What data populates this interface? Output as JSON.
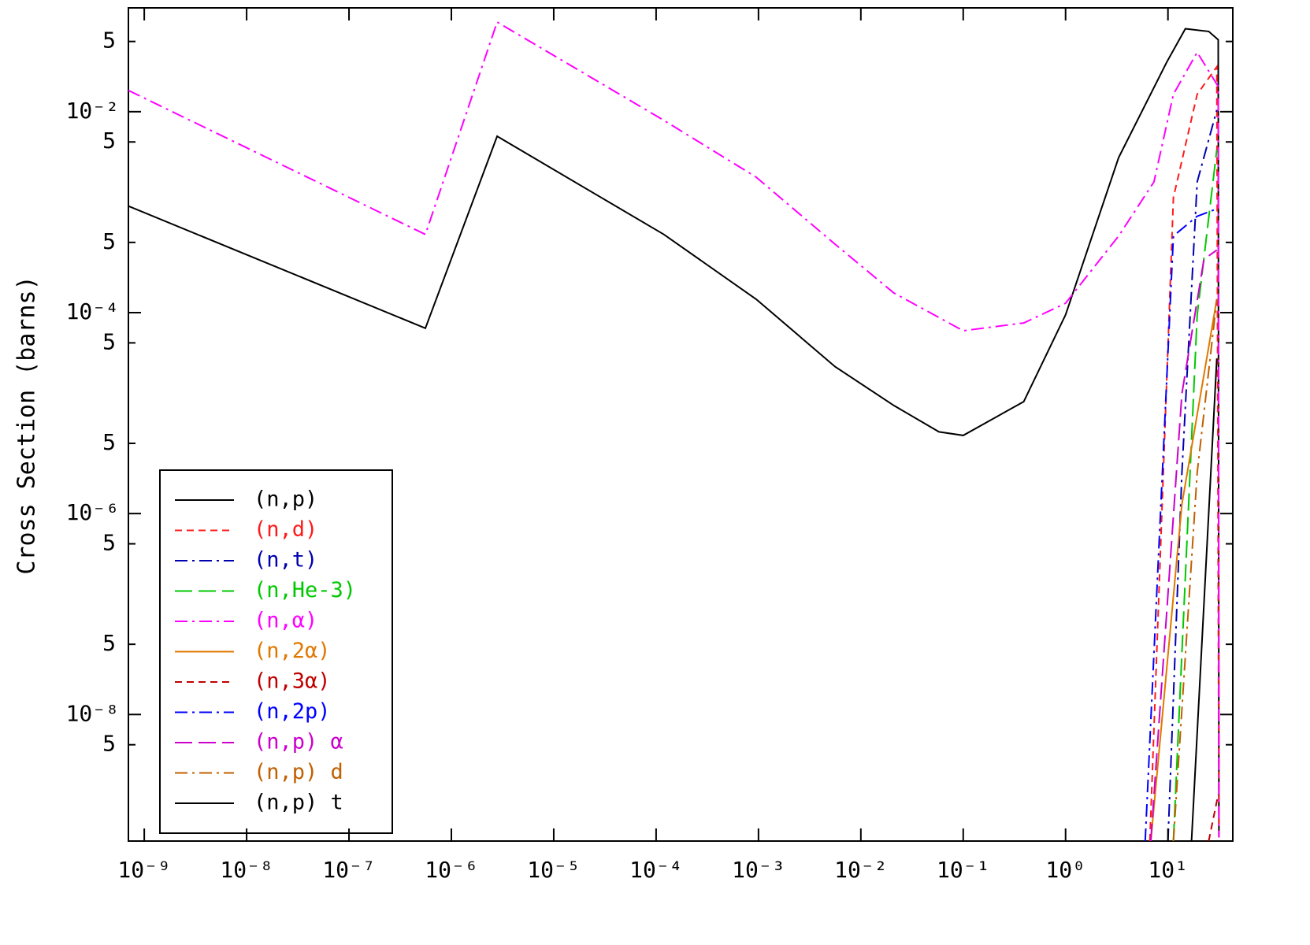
{
  "chart_data": {
    "type": "line",
    "y_label": "Cross Section (barns)",
    "log_x": true,
    "log_y": true,
    "xlim": [
      7e-10,
      43
    ],
    "ylim": [
      5.5e-10,
      0.108
    ],
    "xticks": [
      {
        "value": 1e-09,
        "label": "10⁻⁹"
      },
      {
        "value": 1e-08,
        "label": "10⁻⁸"
      },
      {
        "value": 1e-07,
        "label": "10⁻⁷"
      },
      {
        "value": 1e-06,
        "label": "10⁻⁶"
      },
      {
        "value": 1e-05,
        "label": "10⁻⁵"
      },
      {
        "value": 0.0001,
        "label": "10⁻⁴"
      },
      {
        "value": 0.001,
        "label": "10⁻³"
      },
      {
        "value": 0.01,
        "label": "10⁻²"
      },
      {
        "value": 0.1,
        "label": "10⁻¹"
      },
      {
        "value": 1,
        "label": "10⁰"
      },
      {
        "value": 10,
        "label": "10¹"
      }
    ],
    "yticks": [
      {
        "value": 5e-09,
        "label": "5"
      },
      {
        "value": 1e-08,
        "label": "10⁻⁸"
      },
      {
        "value": 5e-08,
        "label": "5"
      },
      {
        "value": 5e-07,
        "label": "5"
      },
      {
        "value": 1e-06,
        "label": "10⁻⁶"
      },
      {
        "value": 5e-06,
        "label": "5"
      },
      {
        "value": 5e-05,
        "label": "5"
      },
      {
        "value": 0.0001,
        "label": "10⁻⁴"
      },
      {
        "value": 0.0005,
        "label": "5"
      },
      {
        "value": 0.005,
        "label": "5"
      },
      {
        "value": 0.01,
        "label": "10⁻²"
      },
      {
        "value": 0.05,
        "label": "5"
      }
    ],
    "legend": "lower-left",
    "series": [
      {
        "name": "(n,p)",
        "color": "#000000",
        "dash": "solid",
        "x": [
          7e-10,
          5.57e-07,
          2.8e-06,
          0.000119,
          0.00095,
          0.0056,
          0.021,
          0.058,
          0.1,
          0.39,
          1,
          3.3,
          9.7,
          14.8,
          25,
          31,
          31.5
        ],
        "values": [
          0.00115,
          7e-05,
          0.0057,
          0.0006,
          0.000136,
          2.9e-05,
          1.19e-05,
          6.5e-06,
          6e-06,
          1.3e-05,
          9.5e-05,
          0.0035,
          0.031,
          0.067,
          0.063,
          0.052,
          6e-10
        ]
      },
      {
        "name": "(n,d)",
        "color": "#ff1a1a",
        "dash": "dashed",
        "x": [
          6.65,
          11.3,
          19.3,
          30,
          31.5
        ],
        "values": [
          5.5e-10,
          0.0014,
          0.0149,
          0.028,
          6e-10
        ]
      },
      {
        "name": "(n,t)",
        "color": "#0000b0",
        "dash": "dashdot",
        "x": [
          10,
          13.7,
          19.3,
          30
        ],
        "values": [
          5.5e-10,
          2.56e-06,
          0.002,
          0.0104
        ]
      },
      {
        "name": "(n,He-3)",
        "color": "#00c800",
        "dash": "longdash",
        "x": [
          11.3,
          19.3,
          30
        ],
        "values": [
          5.5e-10,
          9.5e-05,
          0.0042
        ]
      },
      {
        "name": "(n,α)",
        "color": "#ff00ff",
        "dash": "dashdot",
        "x": [
          7e-10,
          5.57e-07,
          2.8e-06,
          0.000119,
          0.00095,
          0.0056,
          0.021,
          0.1,
          0.39,
          1,
          3.3,
          7.3,
          11.3,
          19.3,
          31,
          31.5
        ],
        "values": [
          0.0163,
          0.0006,
          0.078,
          0.0082,
          0.00223,
          0.00048,
          0.000157,
          6.6e-05,
          7.9e-05,
          0.000124,
          0.00058,
          0.002,
          0.0149,
          0.039,
          0.0178,
          6e-10
        ]
      },
      {
        "name": "(n,2α)",
        "color": "#e07800",
        "dash": "solid",
        "x": [
          6.8,
          13.7,
          30
        ],
        "values": [
          5.5e-10,
          1.24e-06,
          0.000136
        ]
      },
      {
        "name": "(n,3α)",
        "color": "#c00000",
        "dash": "dashed",
        "x": [
          25,
          31
        ],
        "values": [
          5.5e-10,
          1.6e-09
        ]
      },
      {
        "name": "(n,2p)",
        "color": "#0000ff",
        "dash": "dashdot",
        "x": [
          6,
          11.3,
          19.3,
          30
        ],
        "values": [
          5.5e-10,
          0.00058,
          0.00091,
          0.00108
        ]
      },
      {
        "name": "(n,p) α",
        "color": "#cc00cc",
        "dash": "longdash",
        "x": [
          6.8,
          13.7,
          22.5,
          30
        ],
        "values": [
          5.5e-10,
          1.56e-05,
          0.00034,
          0.00042
        ]
      },
      {
        "name": "(n,p) d",
        "color": "#c06000",
        "dash": "dashdot",
        "x": [
          11.3,
          19.3,
          30
        ],
        "values": [
          5.5e-10,
          2.56e-06,
          0.000136
        ]
      },
      {
        "name": "(n,p) t",
        "color": "#000000",
        "dash": "solid",
        "x": [
          17,
          30
        ],
        "values": [
          5.5e-10,
          3.5e-05
        ]
      }
    ]
  }
}
